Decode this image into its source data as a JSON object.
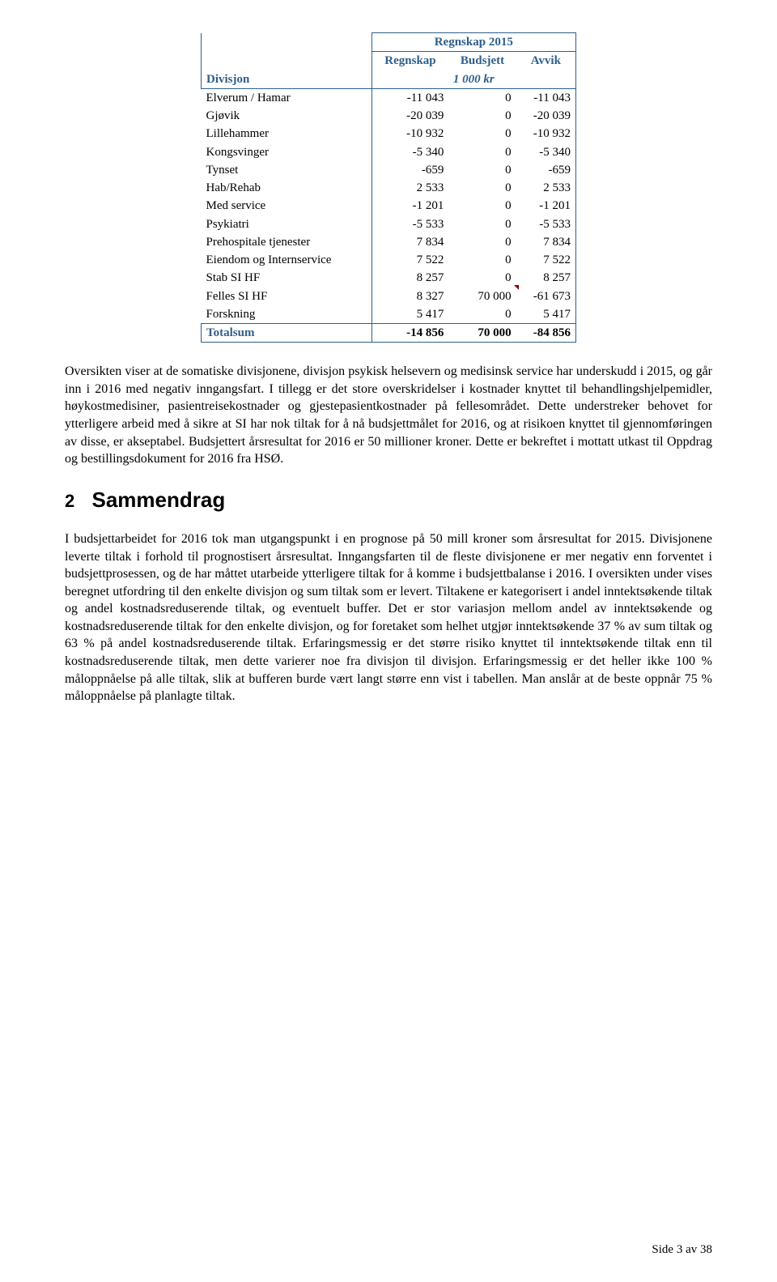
{
  "table": {
    "title": "Regnskap 2015",
    "col_headers": [
      "Regnskap",
      "Budsjett",
      "Avvik"
    ],
    "row_label_header": "Divisjon",
    "sub_header": "1 000 kr",
    "rows": [
      {
        "label": "Elverum / Hamar",
        "v1": "-11 043",
        "v2": "0",
        "v3": "-11 043"
      },
      {
        "label": "Gjøvik",
        "v1": "-20 039",
        "v2": "0",
        "v3": "-20 039"
      },
      {
        "label": "Lillehammer",
        "v1": "-10 932",
        "v2": "0",
        "v3": "-10 932"
      },
      {
        "label": "Kongsvinger",
        "v1": "-5 340",
        "v2": "0",
        "v3": "-5 340"
      },
      {
        "label": "Tynset",
        "v1": "-659",
        "v2": "0",
        "v3": "-659"
      },
      {
        "label": "Hab/Rehab",
        "v1": "2 533",
        "v2": "0",
        "v3": "2 533"
      },
      {
        "label": "Med service",
        "v1": "-1 201",
        "v2": "0",
        "v3": "-1 201"
      },
      {
        "label": "Psykiatri",
        "v1": "-5 533",
        "v2": "0",
        "v3": "-5 533"
      },
      {
        "label": "Prehospitale tjenester",
        "v1": "7 834",
        "v2": "0",
        "v3": "7 834"
      },
      {
        "label": "Eiendom og Internservice",
        "v1": "7 522",
        "v2": "0",
        "v3": "7 522"
      },
      {
        "label": "Stab SI HF",
        "v1": "8 257",
        "v2": "0",
        "v3": "8 257"
      },
      {
        "label": "Felles SI HF",
        "v1": "8 327",
        "v2": "70 000",
        "v3": "-61 673",
        "highlight": true
      },
      {
        "label": "Forskning",
        "v1": "5 417",
        "v2": "0",
        "v3": "5 417"
      }
    ],
    "total": {
      "label": "Totalsum",
      "v1": "-14 856",
      "v2": "70 000",
      "v3": "-84 856"
    },
    "header_color": "#2e5f8a",
    "border_color": "#2e5f8a"
  },
  "paragraph1": "Oversikten viser at de somatiske divisjonene, divisjon psykisk helsevern og medisinsk service har underskudd i 2015, og går inn i 2016 med negativ inngangsfart. I tillegg er det store overskridelser i kostnader knyttet til behandlingshjelpemidler, høykostmedisiner, pasientreisekostnader og gjestepasientkostnader på fellesområdet. Dette understreker behovet for ytterligere arbeid med å sikre at SI har nok tiltak for å nå budsjettmålet for 2016, og at risikoen knyttet til gjennomføringen av disse, er akseptabel. Budsjettert årsresultat for 2016 er 50 millioner kroner. Dette er bekreftet i mottatt utkast til Oppdrag og bestillingsdokument for 2016 fra HSØ.",
  "section": {
    "num": "2",
    "title": "Sammendrag"
  },
  "paragraph2": "I budsjettarbeidet for 2016 tok man utgangspunkt i en prognose på 50 mill kroner som årsresultat for 2015. Divisjonene leverte tiltak i forhold til prognostisert årsresultat. Inngangsfarten til de fleste divisjonene er mer negativ enn forventet i budsjettprosessen, og de har måttet utarbeide ytterligere tiltak for å komme i budsjettbalanse i 2016. I oversikten under vises beregnet utfordring til den enkelte divisjon og sum tiltak som er levert. Tiltakene er kategorisert i andel inntektsøkende tiltak og andel kostnadsreduserende tiltak, og eventuelt buffer. Det er stor variasjon mellom andel av inntektsøkende og kostnadsreduserende tiltak for den enkelte divisjon, og for foretaket som helhet utgjør inntektsøkende 37 % av sum tiltak og 63 % på andel kostnadsreduserende tiltak. Erfaringsmessig er det større risiko knyttet til inntektsøkende tiltak enn til kostnadsreduserende tiltak, men dette varierer noe fra divisjon til divisjon. Erfaringsmessig er det heller ikke 100 % måloppnåelse på alle tiltak, slik at bufferen burde vært langt større enn vist i tabellen. Man anslår at de beste oppnår 75 % måloppnåelse på planlagte tiltak.",
  "footer": "Side 3 av 38"
}
